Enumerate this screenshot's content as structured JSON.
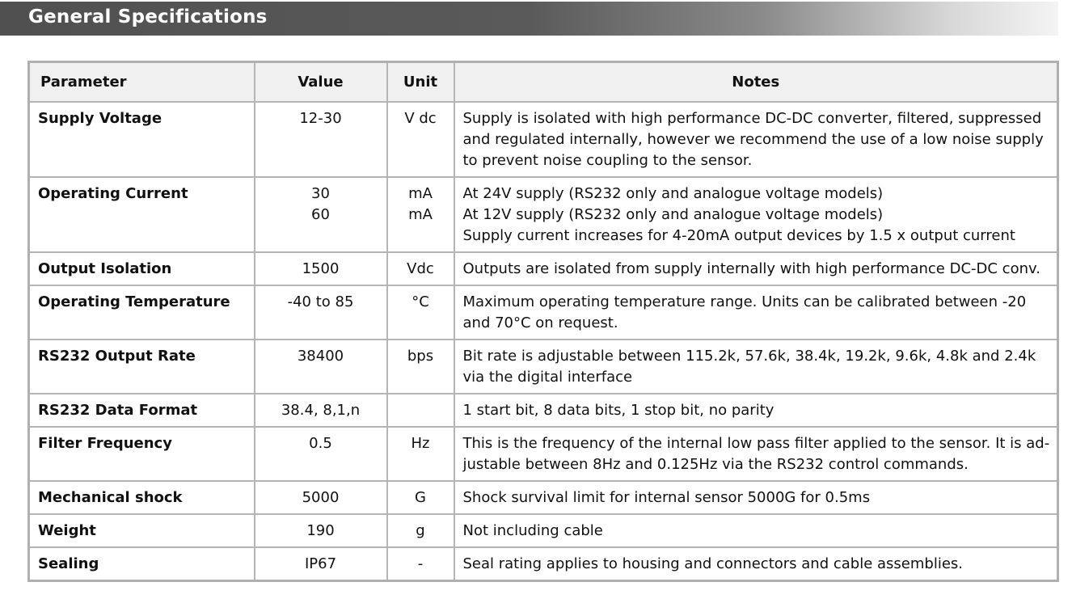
{
  "title": "General Specifications",
  "columns": [
    "Parameter",
    "Value",
    "Unit",
    "Notes"
  ],
  "rows": [
    {
      "parameter": "Supply Voltage",
      "value": [
        "12-30"
      ],
      "unit": [
        "V dc"
      ],
      "notes": [
        "Supply is isolated with high performance DC-DC converter, filtered, suppressed",
        "and regulated internally, however we recommend the use of a low noise supply",
        "to prevent noise coupling to the sensor."
      ]
    },
    {
      "parameter": "Operating Current",
      "value": [
        "30",
        "60"
      ],
      "unit": [
        "mA",
        "mA"
      ],
      "notes": [
        "At 24V supply (RS232 only and analogue voltage models)",
        "At 12V supply (RS232 only and analogue voltage models)",
        "Supply current increases for 4-20mA output devices by 1.5 x output current"
      ]
    },
    {
      "parameter": "Output Isolation",
      "value": [
        "1500"
      ],
      "unit": [
        "Vdc"
      ],
      "notes": [
        "Outputs are isolated from supply internally with high performance DC-DC conv."
      ]
    },
    {
      "parameter": "Operating Temperature",
      "value": [
        "-40 to 85"
      ],
      "unit": [
        "°C"
      ],
      "notes": [
        "Maximum operating temperature range.  Units can be calibrated between -20",
        "and 70°C on request."
      ]
    },
    {
      "parameter": "RS232 Output Rate",
      "value": [
        "38400"
      ],
      "unit": [
        "bps"
      ],
      "notes": [
        "Bit rate is adjustable between 115.2k, 57.6k, 38.4k, 19.2k, 9.6k, 4.8k and 2.4k",
        "via the digital interface"
      ]
    },
    {
      "parameter": "RS232 Data Format",
      "value": [
        "38.4, 8,1,n"
      ],
      "unit": [
        ""
      ],
      "notes": [
        "1 start bit, 8 data bits, 1 stop bit, no parity"
      ]
    },
    {
      "parameter": "Filter Frequency",
      "value": [
        "0.5"
      ],
      "unit": [
        "Hz"
      ],
      "notes": [
        "This is the frequency of the internal low pass filter applied to the sensor.  It is ad-",
        "justable between 8Hz and 0.125Hz via the RS232 control commands."
      ]
    },
    {
      "parameter": "Mechanical shock",
      "value": [
        "5000"
      ],
      "unit": [
        "G"
      ],
      "notes": [
        "Shock survival limit for internal sensor 5000G for 0.5ms"
      ]
    },
    {
      "parameter": "Weight",
      "value": [
        "190"
      ],
      "unit": [
        "g"
      ],
      "notes": [
        "Not including cable"
      ]
    },
    {
      "parameter": "Sealing",
      "value": [
        "IP67"
      ],
      "unit": [
        "-"
      ],
      "notes": [
        "Seal rating applies to housing and connectors and cable assemblies."
      ]
    }
  ]
}
